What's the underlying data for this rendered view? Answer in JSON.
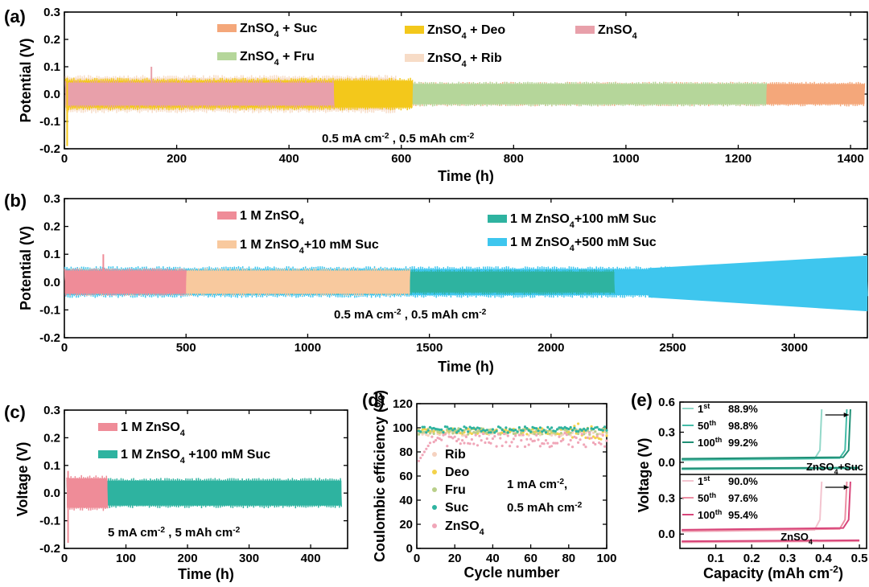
{
  "chart_data": [
    {
      "panel": "(a)",
      "type": "line",
      "xlabel": "Time (h)",
      "ylabel": "Potential (V)",
      "xlim": [
        0,
        1430
      ],
      "ylim": [
        -0.2,
        0.3
      ],
      "xticks": [
        "0",
        "200",
        "400",
        "600",
        "800",
        "1000",
        "1200",
        "1400"
      ],
      "yticks": [
        "-0.2",
        "-0.1",
        "0.0",
        "0.1",
        "0.2",
        "0.3"
      ],
      "annotation": "0.5 mA cm⁻² , 0.5 mAh cm⁻²",
      "series": [
        {
          "name": "ZnSO₄ + Suc",
          "color": "#f4a77a",
          "end_time_h": 1425,
          "amplitude_v": 0.045
        },
        {
          "name": "ZnSO₄ + Fru",
          "color": "#b5d69a",
          "end_time_h": 1250,
          "amplitude_v": 0.045
        },
        {
          "name": "ZnSO₄ + Deo",
          "color": "#f3c81b",
          "end_time_h": 620,
          "amplitude_v": 0.06
        },
        {
          "name": "ZnSO₄ + Rib",
          "color": "#f7dcc7",
          "end_time_h": 590,
          "amplitude_v": 0.07
        },
        {
          "name": "ZnSO₄",
          "color": "#e8a0aa",
          "end_time_h": 480,
          "amplitude_v": 0.05
        }
      ]
    },
    {
      "panel": "(b)",
      "type": "line",
      "xlabel": "Time (h)",
      "ylabel": "Potential (V)",
      "xlim": [
        0,
        3300
      ],
      "ylim": [
        -0.2,
        0.3
      ],
      "xticks": [
        "0",
        "500",
        "1000",
        "1500",
        "2000",
        "2500",
        "3000"
      ],
      "yticks": [
        "-0.2",
        "-0.1",
        "0.0",
        "0.1",
        "0.2",
        "0.3"
      ],
      "annotation": "0.5 mA cm⁻² , 0.5 mAh cm⁻²",
      "series": [
        {
          "name": "1 M ZnSO₄",
          "color": "#ef8c98",
          "end_time_h": 500,
          "amplitude_v": 0.05
        },
        {
          "name": "1 M ZnSO₄+10 mM Suc",
          "color": "#f8c99e",
          "end_time_h": 1420,
          "amplitude_v": 0.05
        },
        {
          "name": "1 M ZnSO₄+100 mM Suc",
          "color": "#2eb3a0",
          "end_time_h": 2260,
          "amplitude_v": 0.045
        },
        {
          "name": "1 M ZnSO₄+500 mM Suc",
          "color": "#3ec6ee",
          "end_time_h": 3300,
          "amplitude_v": 0.095
        }
      ]
    },
    {
      "panel": "(c)",
      "type": "line",
      "xlabel": "Time (h)",
      "ylabel": "Voltage (V)",
      "xlim": [
        0,
        460
      ],
      "ylim": [
        -0.2,
        0.3
      ],
      "xticks": [
        "0",
        "100",
        "200",
        "300",
        "400"
      ],
      "yticks": [
        "-0.2",
        "-0.1",
        "0.0",
        "0.1",
        "0.2",
        "0.3"
      ],
      "annotation": "5 mA cm⁻² ,  5 mAh cm⁻²",
      "series": [
        {
          "name": "1 M ZnSO₄",
          "color": "#ef8c98",
          "end_time_h": 70,
          "amplitude_v": 0.065
        },
        {
          "name": "1 M ZnSO₄ +100 mM Suc",
          "color": "#2eb3a0",
          "end_time_h": 450,
          "amplitude_v": 0.055
        }
      ]
    },
    {
      "panel": "(d)",
      "type": "scatter",
      "xlabel": "Cycle number",
      "ylabel": "Coulombic efficiency (%)",
      "xlim": [
        0,
        100
      ],
      "ylim": [
        0,
        120
      ],
      "xticks": [
        "0",
        "20",
        "40",
        "60",
        "80",
        "100"
      ],
      "yticks": [
        "0",
        "20",
        "40",
        "60",
        "80",
        "100",
        "120"
      ],
      "annotation_line1": "1 mA cm⁻²,",
      "annotation_line2": "0.5 mAh cm⁻²",
      "series": [
        {
          "name": "Rib",
          "color": "#f5d2c0",
          "mean_ce": 96
        },
        {
          "name": "Deo",
          "color": "#f3d24a",
          "mean_ce": 97
        },
        {
          "name": "Fru",
          "color": "#b9cf8a",
          "mean_ce": 97
        },
        {
          "name": "Suc",
          "color": "#2eb3a0",
          "mean_ce": 98.5
        },
        {
          "name": "ZnSO₄",
          "color": "#f0a6b8",
          "mean_ce": 90
        }
      ]
    },
    {
      "panel": "(e)",
      "type": "line",
      "xlabel": "Capacity (mAh cm⁻²)",
      "ylabel": "Voltage (V)",
      "xlim": [
        0,
        0.52
      ],
      "xticks": [
        "0.1",
        "0.2",
        "0.3",
        "0.4",
        "0.5"
      ],
      "top": {
        "label": "ZnSO₄+Suc",
        "yticks": [
          "0.0",
          "0.3",
          "0.6"
        ],
        "ylim": [
          -0.12,
          0.6
        ],
        "cycles": [
          {
            "cycle": "1",
            "sup": "st",
            "ce": "88.9%",
            "color": "#93d8c9"
          },
          {
            "cycle": "50",
            "sup": "th",
            "ce": "98.8%",
            "color": "#45bca8"
          },
          {
            "cycle": "100",
            "sup": "th",
            "ce": "99.2%",
            "color": "#1f8f75"
          }
        ]
      },
      "bottom": {
        "label": "ZnSO₄",
        "yticks": [
          "0.0",
          "0.3"
        ],
        "ylim": [
          -0.12,
          0.5
        ],
        "cycles": [
          {
            "cycle": "1",
            "sup": "st",
            "ce": "90.0%",
            "color": "#f3c4cf"
          },
          {
            "cycle": "50",
            "sup": "th",
            "ce": "97.6%",
            "color": "#ec8ea3"
          },
          {
            "cycle": "100",
            "sup": "th",
            "ce": "95.4%",
            "color": "#d8457a"
          }
        ]
      }
    }
  ]
}
